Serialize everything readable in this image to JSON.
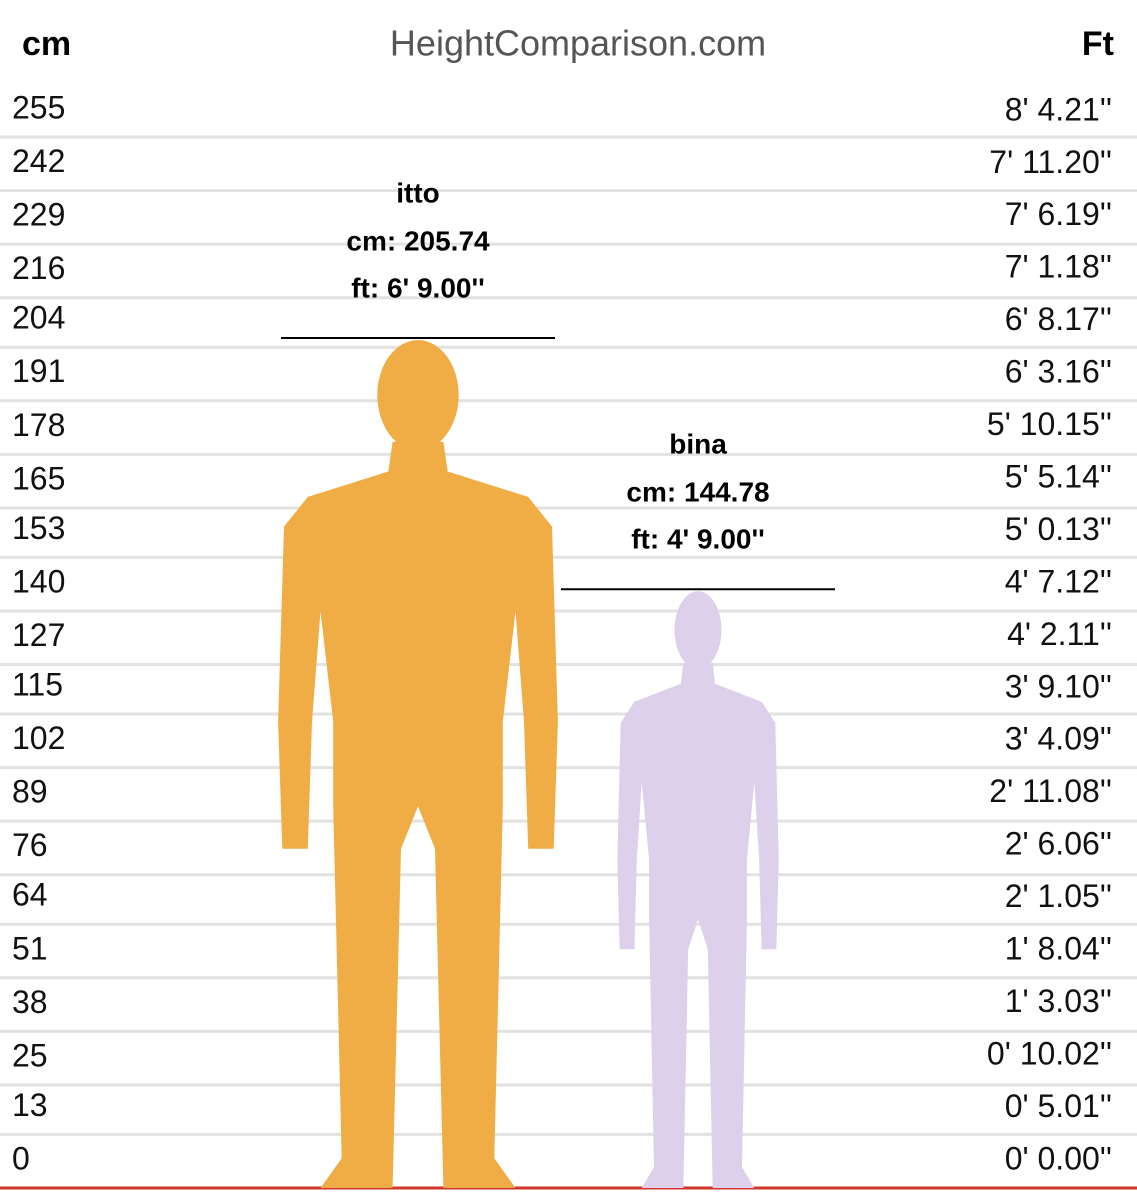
{
  "chart_data": {
    "type": "bar",
    "title": "HeightComparison.com",
    "y_label": "cm",
    "y2_label": "Ft",
    "categories": [
      "itto",
      "bina"
    ],
    "values": [
      205.74,
      144.78
    ],
    "value_labels": [
      "cm: 205.74",
      "cm: 144.78"
    ],
    "ft_labels": [
      "ft: 6' 9.00''",
      "ft: 4' 9.00''"
    ],
    "colors": [
      "#f0ad45",
      "#dcd0ea"
    ],
    "ylim": [
      0,
      255
    ],
    "yticks": [
      0,
      13,
      25,
      38,
      51,
      64,
      76,
      89,
      102,
      115,
      127,
      140,
      153,
      165,
      178,
      191,
      204,
      216,
      229,
      242,
      255
    ],
    "y2lim": [
      0,
      100.39
    ],
    "y2ticks": [
      {
        "value": 0,
        "label": "0' 0.00''"
      },
      {
        "value": 5.01,
        "label": "0' 5.01''"
      },
      {
        "value": 10.02,
        "label": "0' 10.02''"
      },
      {
        "value": 15.03,
        "label": "1' 3.03''"
      },
      {
        "value": 20.04,
        "label": "1' 8.04''"
      },
      {
        "value": 25.05,
        "label": "2' 1.05''"
      },
      {
        "value": 30.06,
        "label": "2' 6.06''"
      },
      {
        "value": 35.08,
        "label": "2' 11.08''"
      },
      {
        "value": 40.09,
        "label": "3' 4.09''"
      },
      {
        "value": 45.1,
        "label": "3' 9.10''"
      },
      {
        "value": 50.11,
        "label": "4' 2.11''"
      },
      {
        "value": 55.12,
        "label": "4' 7.12''"
      },
      {
        "value": 60.13,
        "label": "5' 0.13''"
      },
      {
        "value": 65.14,
        "label": "5' 5.14''"
      },
      {
        "value": 70.15,
        "label": "5' 10.15''"
      },
      {
        "value": 75.16,
        "label": "6' 3.16''"
      },
      {
        "value": 80.17,
        "label": "6' 8.17''"
      },
      {
        "value": 85.18,
        "label": "7' 1.18''"
      },
      {
        "value": 90.19,
        "label": "7' 6.19''"
      },
      {
        "value": 95.2,
        "label": "7' 11.20''"
      },
      {
        "value": 100.21,
        "label": "8' 4.21''"
      }
    ],
    "grid": true
  }
}
